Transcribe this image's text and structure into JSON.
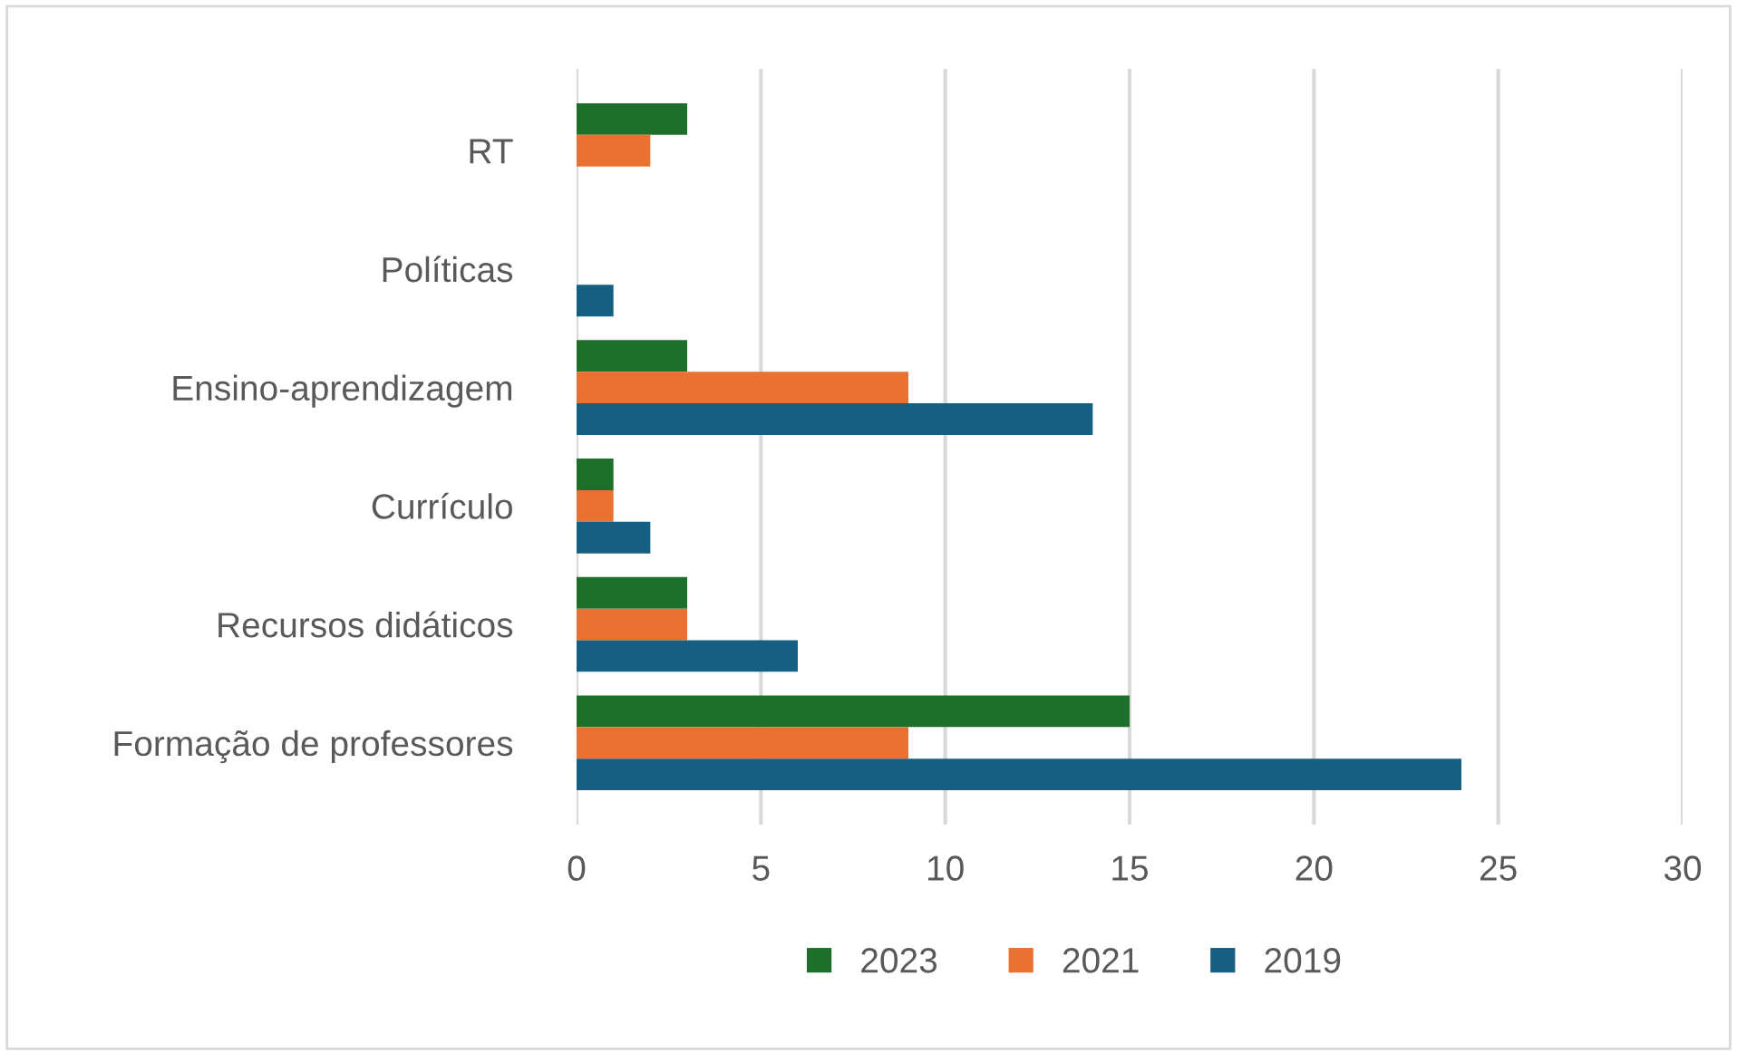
{
  "chart_data": {
    "type": "bar",
    "orientation": "horizontal",
    "categories": [
      "RT",
      "Políticas",
      "Ensino-aprendizagem",
      "Currículo",
      "Recursos didáticos",
      "Formação de professores"
    ],
    "series": [
      {
        "name": "2023",
        "color": "#1e6f2a",
        "values": [
          3,
          null,
          3,
          1,
          3,
          15
        ]
      },
      {
        "name": "2021",
        "color": "#e97132",
        "values": [
          2,
          null,
          9,
          1,
          3,
          9
        ]
      },
      {
        "name": "2019",
        "color": "#156082",
        "values": [
          null,
          1,
          14,
          2,
          6,
          24
        ]
      }
    ],
    "xlim": [
      0,
      30
    ],
    "xticks": [
      0,
      5,
      10,
      15,
      20,
      25,
      30
    ],
    "grid": "x",
    "legend": "bottom"
  }
}
